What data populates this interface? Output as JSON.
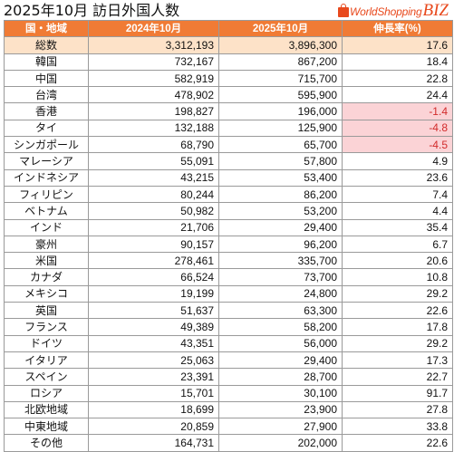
{
  "title": "2025年10月 訪日外国人数",
  "logo": {
    "text": "WorldShopping",
    "suffix": "BIZ",
    "color": "#e8491d"
  },
  "colors": {
    "header_bg": "#f07b35",
    "total_bg": "#fde2c8",
    "negative_bg": "#fbd3d6",
    "negative_text": "#d22b2b"
  },
  "headers": [
    "国・地域",
    "2024年10月",
    "2025年10月",
    "伸長率(%)"
  ],
  "rows": [
    {
      "name": "総数",
      "v2024": "3,312,193",
      "v2025": "3,896,300",
      "growth": "17.6",
      "total": true
    },
    {
      "name": "韓国",
      "v2024": "732,167",
      "v2025": "867,200",
      "growth": "18.4"
    },
    {
      "name": "中国",
      "v2024": "582,919",
      "v2025": "715,700",
      "growth": "22.8"
    },
    {
      "name": "台湾",
      "v2024": "478,902",
      "v2025": "595,900",
      "growth": "24.4"
    },
    {
      "name": "香港",
      "v2024": "198,827",
      "v2025": "196,000",
      "growth": "-1.4",
      "negative": true
    },
    {
      "name": "タイ",
      "v2024": "132,188",
      "v2025": "125,900",
      "growth": "-4.8",
      "negative": true
    },
    {
      "name": "シンガポール",
      "v2024": "68,790",
      "v2025": "65,700",
      "growth": "-4.5",
      "negative": true
    },
    {
      "name": "マレーシア",
      "v2024": "55,091",
      "v2025": "57,800",
      "growth": "4.9"
    },
    {
      "name": "インドネシア",
      "v2024": "43,215",
      "v2025": "53,400",
      "growth": "23.6"
    },
    {
      "name": "フィリピン",
      "v2024": "80,244",
      "v2025": "86,200",
      "growth": "7.4"
    },
    {
      "name": "ベトナム",
      "v2024": "50,982",
      "v2025": "53,200",
      "growth": "4.4"
    },
    {
      "name": "インド",
      "v2024": "21,706",
      "v2025": "29,400",
      "growth": "35.4"
    },
    {
      "name": "豪州",
      "v2024": "90,157",
      "v2025": "96,200",
      "growth": "6.7"
    },
    {
      "name": "米国",
      "v2024": "278,461",
      "v2025": "335,700",
      "growth": "20.6"
    },
    {
      "name": "カナダ",
      "v2024": "66,524",
      "v2025": "73,700",
      "growth": "10.8"
    },
    {
      "name": "メキシコ",
      "v2024": "19,199",
      "v2025": "24,800",
      "growth": "29.2"
    },
    {
      "name": "英国",
      "v2024": "51,637",
      "v2025": "63,300",
      "growth": "22.6"
    },
    {
      "name": "フランス",
      "v2024": "49,389",
      "v2025": "58,200",
      "growth": "17.8"
    },
    {
      "name": "ドイツ",
      "v2024": "43,351",
      "v2025": "56,000",
      "growth": "29.2"
    },
    {
      "name": "イタリア",
      "v2024": "25,063",
      "v2025": "29,400",
      "growth": "17.3"
    },
    {
      "name": "スペイン",
      "v2024": "23,391",
      "v2025": "28,700",
      "growth": "22.7"
    },
    {
      "name": "ロシア",
      "v2024": "15,701",
      "v2025": "30,100",
      "growth": "91.7"
    },
    {
      "name": "北欧地域",
      "v2024": "18,699",
      "v2025": "23,900",
      "growth": "27.8"
    },
    {
      "name": "中東地域",
      "v2024": "20,859",
      "v2025": "27,900",
      "growth": "33.8"
    },
    {
      "name": "その他",
      "v2024": "164,731",
      "v2025": "202,000",
      "growth": "22.6"
    }
  ]
}
